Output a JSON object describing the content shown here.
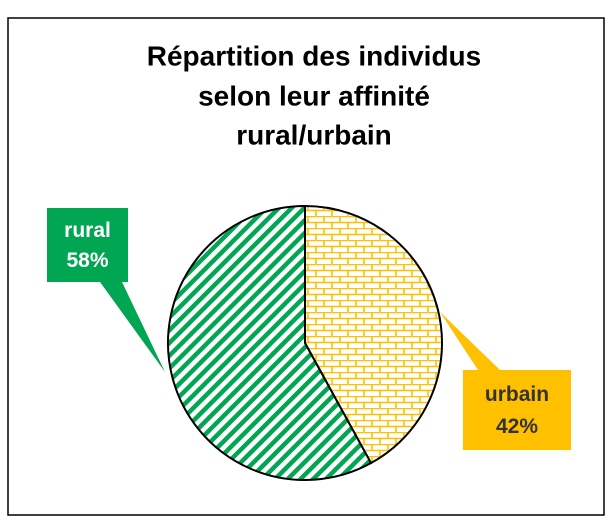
{
  "chart_data": {
    "type": "pie",
    "title": [
      "Répartition des individus",
      "selon leur affinité",
      "rural/urbain"
    ],
    "categories": [
      "urbain",
      "rural"
    ],
    "values": [
      42,
      58
    ],
    "value_labels": [
      "42%",
      "58%"
    ],
    "colors": [
      "#ffc000",
      "#00a651"
    ]
  }
}
